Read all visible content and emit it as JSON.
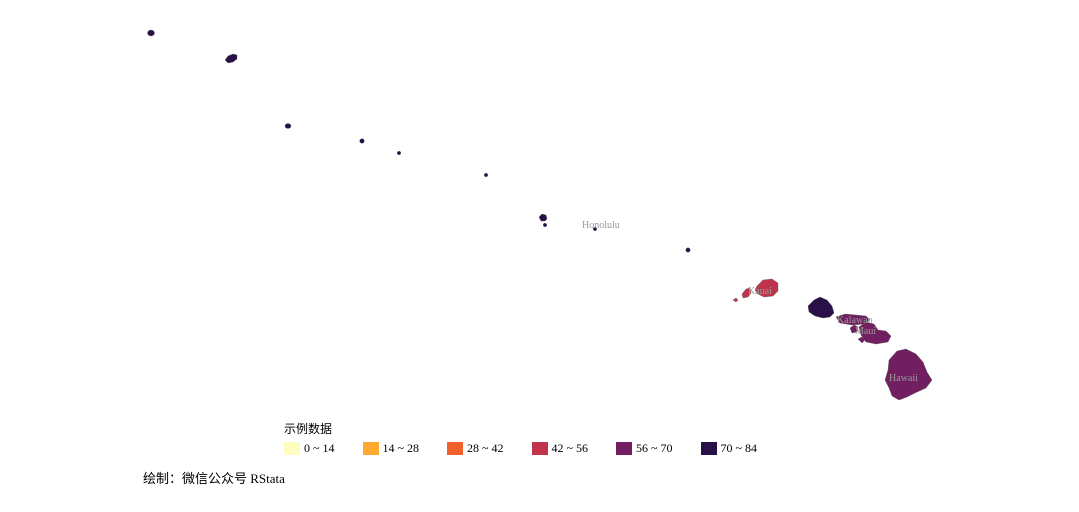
{
  "legend": {
    "title": "示例数据",
    "items": [
      {
        "label": "0 ~ 14",
        "color": "#FCFDBF"
      },
      {
        "label": "14 ~ 28",
        "color": "#FEA92F"
      },
      {
        "label": "28 ~ 42",
        "color": "#F0612C"
      },
      {
        "label": "42 ~ 56",
        "color": "#C1334A"
      },
      {
        "label": "56 ~ 70",
        "color": "#721F61"
      },
      {
        "label": "70 ~ 84",
        "color": "#2A1048"
      }
    ]
  },
  "labels": {
    "honolulu": "Honolulu",
    "kauai": "Kauai",
    "kalawao": "Kalawao",
    "maui": "Maui",
    "hawaii": "Hawaii"
  },
  "caption": "绘制：微信公众号 RStata",
  "colors": {
    "dark": "#2A1048",
    "purple": "#721F61",
    "red": "#C1334A",
    "outline": "#5a5a5a"
  }
}
